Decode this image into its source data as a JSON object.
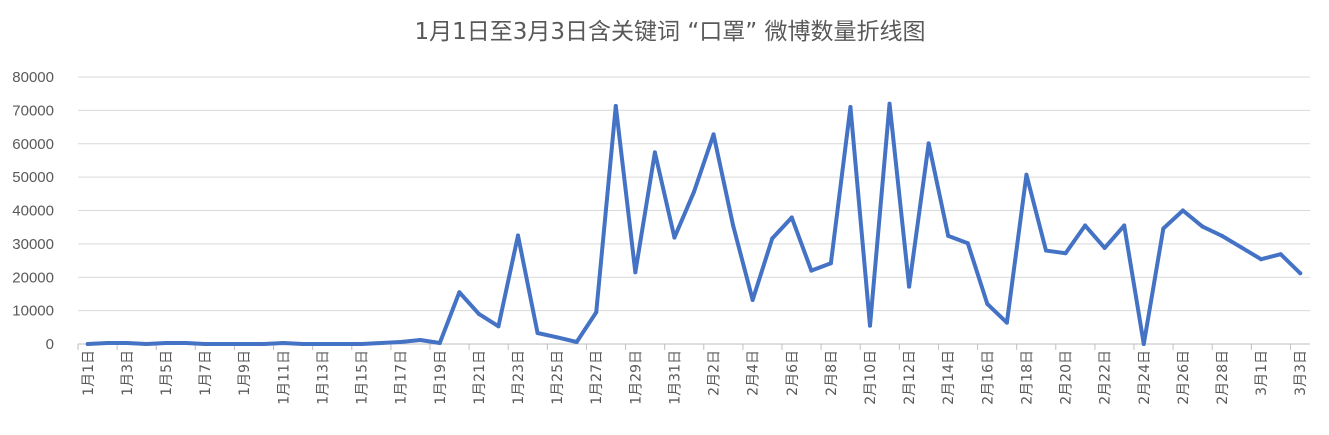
{
  "chart_data": {
    "type": "line",
    "title": "1月1日至3月3日含关键词 “口罩” 微博数量折线图",
    "xlabel": "",
    "ylabel": "",
    "ylim": [
      0,
      80000
    ],
    "yticks": [
      0,
      10000,
      20000,
      30000,
      40000,
      50000,
      60000,
      70000,
      80000
    ],
    "ytick_labels": [
      "0",
      "10000",
      "20000",
      "30000",
      "40000",
      "50000",
      "60000",
      "70000",
      "80000"
    ],
    "grid": true,
    "legend": "none",
    "colors": {
      "line": "#4472c4",
      "grid": "#d9d9d9",
      "text": "#595959"
    },
    "x": [
      "1月1日",
      "1月2日",
      "1月3日",
      "1月4日",
      "1月5日",
      "1月6日",
      "1月7日",
      "1月8日",
      "1月9日",
      "1月10日",
      "1月11日",
      "1月12日",
      "1月13日",
      "1月14日",
      "1月15日",
      "1月16日",
      "1月17日",
      "1月18日",
      "1月19日",
      "1月20日",
      "1月21日",
      "1月22日",
      "1月23日",
      "1月24日",
      "1月25日",
      "1月26日",
      "1月27日",
      "1月28日",
      "1月29日",
      "1月30日",
      "1月31日",
      "2月1日",
      "2月2日",
      "2月3日",
      "2月4日",
      "2月5日",
      "2月6日",
      "2月7日",
      "2月8日",
      "2月9日",
      "2月10日",
      "2月11日",
      "2月12日",
      "2月13日",
      "2月14日",
      "2月15日",
      "2月16日",
      "2月17日",
      "2月18日",
      "2月19日",
      "2月20日",
      "2月21日",
      "2月22日",
      "2月23日",
      "2月24日",
      "2月25日",
      "2月26日",
      "2月27日",
      "2月28日",
      "2月29日",
      "3月1日",
      "3月2日",
      "3月3日"
    ],
    "x_tick_labels": [
      "1月1日",
      "1月3日",
      "1月5日",
      "1月7日",
      "1月9日",
      "1月11日",
      "1月13日",
      "1月15日",
      "1月17日",
      "1月19日",
      "1月21日",
      "1月23日",
      "1月25日",
      "1月27日",
      "1月29日",
      "1月31日",
      "2月2日",
      "2月4日",
      "2月6日",
      "2月8日",
      "2月10日",
      "2月12日",
      "2月14日",
      "2月16日",
      "2月18日",
      "2月20日",
      "2月22日",
      "2月24日",
      "2月26日",
      "2月28日",
      "3月1日",
      "3月3日"
    ],
    "series": [
      {
        "values": [
          0,
          300,
          300,
          0,
          300,
          300,
          0,
          0,
          0,
          0,
          300,
          0,
          0,
          0,
          0,
          300,
          600,
          1200,
          300,
          15500,
          9000,
          5300,
          32500,
          3300,
          2000,
          600,
          9500,
          71300,
          21500,
          57400,
          31900,
          45600,
          62800,
          35500,
          13200,
          31600,
          37900,
          22000,
          24200,
          71000,
          5500,
          72000,
          17200,
          60100,
          32400,
          30200,
          12000,
          6400,
          50700,
          28000,
          27200,
          35500,
          28800,
          35500,
          0,
          34600,
          40000,
          35200,
          32400,
          28900,
          25400,
          26900,
          21200
        ]
      }
    ]
  }
}
